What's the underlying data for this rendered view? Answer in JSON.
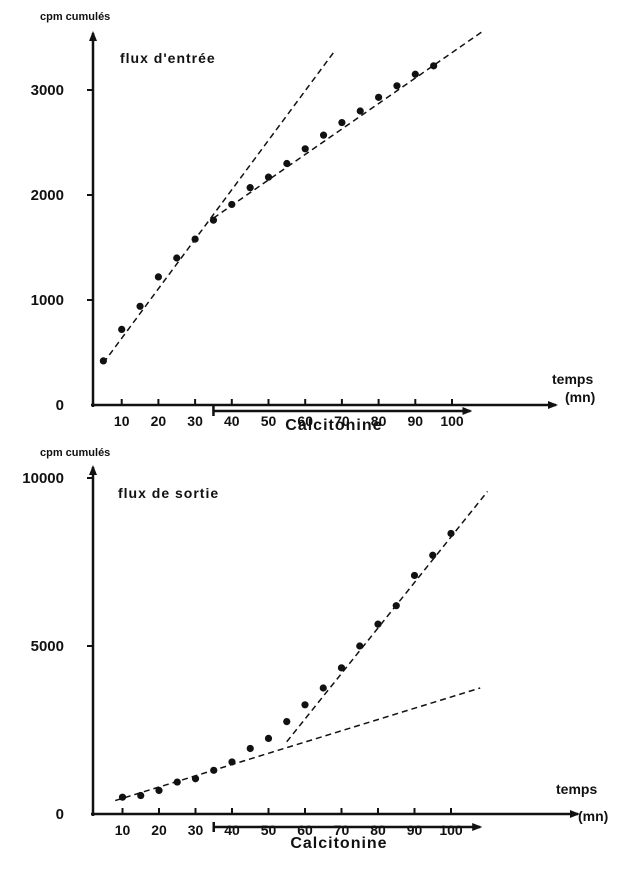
{
  "chart_data": [
    {
      "type": "scatter",
      "title": "flux  d'entrée",
      "ylabel": "cpm cumulés",
      "xlabel": "temps",
      "xunit": "(mn)",
      "xlim": [
        0,
        110
      ],
      "ylim": [
        0,
        3000
      ],
      "xticks": [
        10,
        20,
        30,
        40,
        50,
        60,
        70,
        80,
        90,
        100
      ],
      "xtick_labels": [
        "10",
        "20",
        "30",
        "40",
        "50",
        "60",
        "70",
        "80",
        "90",
        "100"
      ],
      "yticks": [
        0,
        1000,
        2000,
        3000
      ],
      "ytick_labels": [
        "0",
        "1000",
        "2000",
        "3000"
      ],
      "grid": false,
      "series": [
        {
          "x": [
            5,
            10,
            15,
            20,
            25,
            30,
            35,
            40,
            45,
            50,
            55,
            60,
            65,
            70,
            75,
            80,
            85,
            90,
            95
          ],
          "y": [
            420,
            720,
            940,
            1220,
            1400,
            1580,
            1760,
            1910,
            2070,
            2170,
            2300,
            2440,
            2570,
            2690,
            2800,
            2930,
            3040,
            3150,
            3230
          ]
        }
      ],
      "fit_lines": [
        {
          "x": [
            5,
            68
          ],
          "y": [
            400,
            3370
          ]
        },
        {
          "x": [
            35,
            108
          ],
          "y": [
            1780,
            3550
          ]
        }
      ],
      "annotation": {
        "label": "Calcitonine",
        "x_start": 35,
        "x_end": 105
      }
    },
    {
      "type": "scatter",
      "title": "flux  de sortie",
      "ylabel": "cpm cumulés",
      "xlabel": "temps",
      "xunit": "(mn)",
      "xlim": [
        0,
        110
      ],
      "ylim": [
        0,
        10000
      ],
      "xticks": [
        10,
        20,
        30,
        40,
        50,
        60,
        70,
        80,
        90,
        100
      ],
      "xtick_labels": [
        "10",
        "20",
        "30",
        "40",
        "50",
        "60",
        "70",
        "80",
        "90",
        "100"
      ],
      "yticks": [
        0,
        5000,
        10000
      ],
      "ytick_labels": [
        "0",
        "5000",
        "10000"
      ],
      "grid": false,
      "series": [
        {
          "x": [
            10,
            15,
            20,
            25,
            30,
            35,
            40,
            45,
            50,
            55,
            60,
            65,
            70,
            75,
            80,
            85,
            90,
            95,
            100
          ],
          "y": [
            500,
            550,
            700,
            950,
            1050,
            1300,
            1550,
            1950,
            2250,
            2750,
            3250,
            3750,
            4350,
            5000,
            5650,
            6200,
            7100,
            7700,
            8350
          ]
        }
      ],
      "fit_lines": [
        {
          "x": [
            8,
            108
          ],
          "y": [
            400,
            3750
          ]
        },
        {
          "x": [
            55,
            110
          ],
          "y": [
            2150,
            9600
          ]
        }
      ],
      "annotation": {
        "label": "Calcitonine",
        "x_start": 35,
        "x_end": 108
      }
    }
  ]
}
